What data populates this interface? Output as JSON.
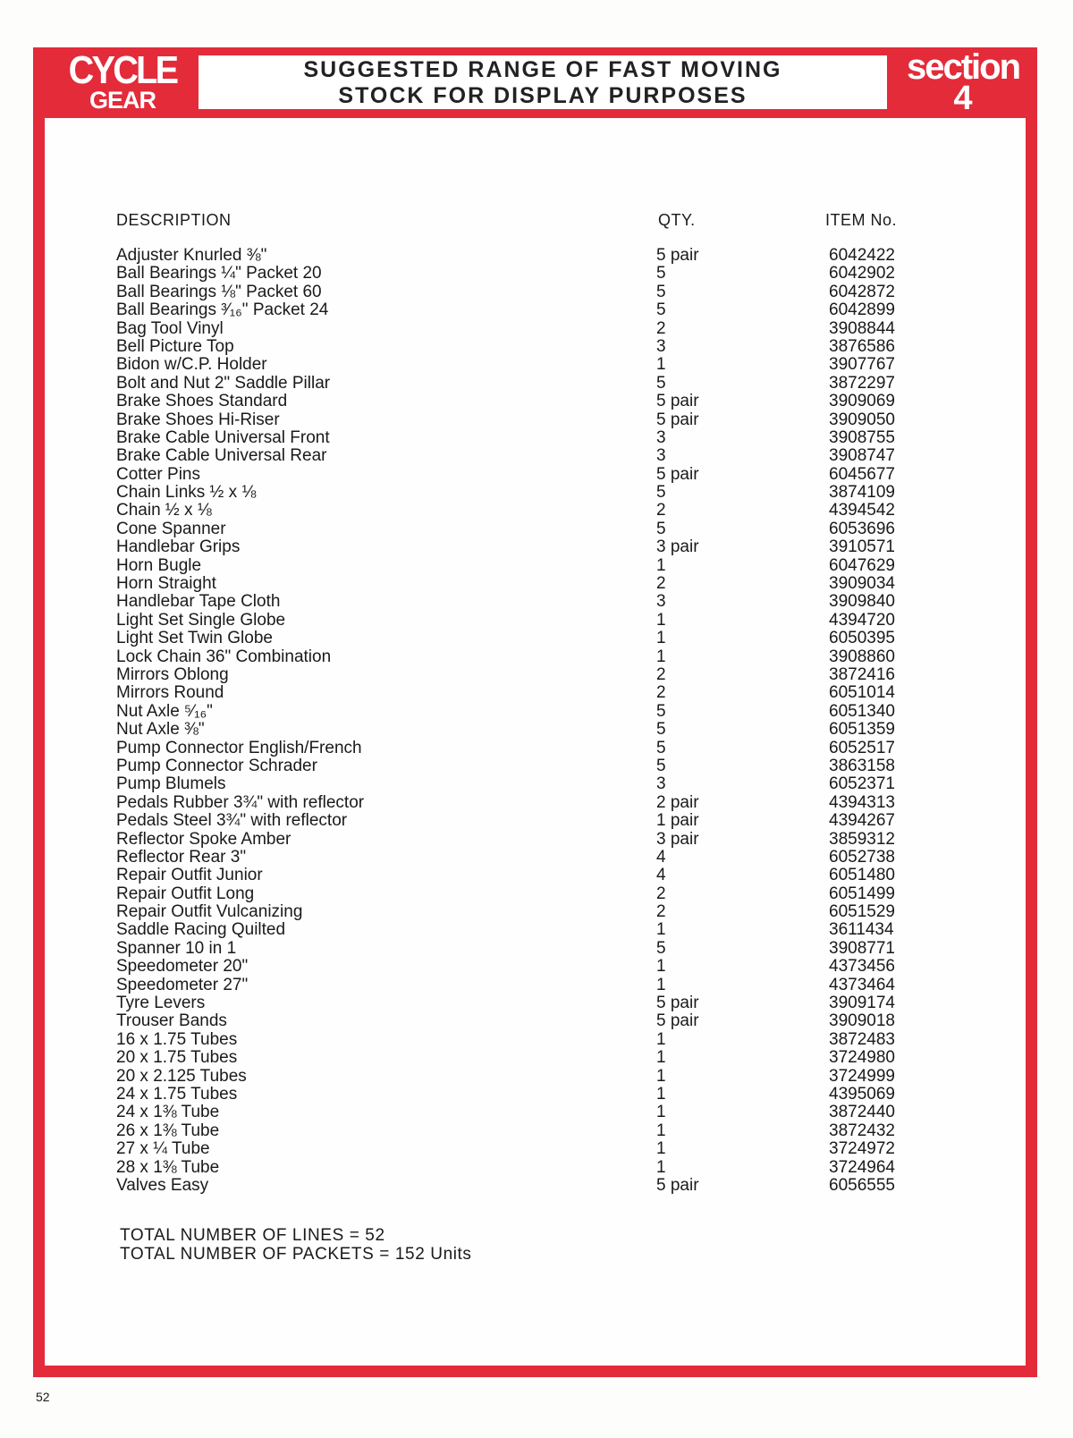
{
  "header": {
    "logo_line1": "CYCLE",
    "logo_line2": "GEAR",
    "title_line1": "SUGGESTED RANGE OF FAST MOVING",
    "title_line2": "STOCK FOR DISPLAY PURPOSES",
    "section_label": "section",
    "section_number": "4",
    "accent_color": "#e32b3a"
  },
  "table": {
    "columns": [
      "DESCRIPTION",
      "QTY.",
      "ITEM No."
    ],
    "rows": [
      [
        "Adjuster Knurled ⅜\"",
        "5 pair",
        "6042422"
      ],
      [
        "Ball Bearings ¼\" Packet 20",
        "5",
        "6042902"
      ],
      [
        "Ball Bearings ⅛\" Packet 60",
        "5",
        "6042872"
      ],
      [
        "Ball Bearings ³⁄₁₆\" Packet 24",
        "5",
        "6042899"
      ],
      [
        "Bag Tool Vinyl",
        "2",
        "3908844"
      ],
      [
        "Bell Picture Top",
        "3",
        "3876586"
      ],
      [
        "Bidon w/C.P. Holder",
        "1",
        "3907767"
      ],
      [
        "Bolt and Nut 2\" Saddle Pillar",
        "5",
        "3872297"
      ],
      [
        "Brake Shoes Standard",
        "5 pair",
        "3909069"
      ],
      [
        "Brake Shoes Hi-Riser",
        "5 pair",
        "3909050"
      ],
      [
        "Brake Cable Universal Front",
        "3",
        "3908755"
      ],
      [
        "Brake Cable Universal Rear",
        "3",
        "3908747"
      ],
      [
        "Cotter Pins",
        "5 pair",
        "6045677"
      ],
      [
        "Chain Links ½ x ⅛",
        "5",
        "3874109"
      ],
      [
        "Chain ½ x ⅛",
        "2",
        "4394542"
      ],
      [
        "Cone Spanner",
        "5",
        "6053696"
      ],
      [
        "Handlebar Grips",
        "3 pair",
        "3910571"
      ],
      [
        "Horn Bugle",
        "1",
        "6047629"
      ],
      [
        "Horn Straight",
        "2",
        "3909034"
      ],
      [
        "Handlebar Tape Cloth",
        "3",
        "3909840"
      ],
      [
        "Light Set Single Globe",
        "1",
        "4394720"
      ],
      [
        "Light Set Twin Globe",
        "1",
        "6050395"
      ],
      [
        "Lock Chain 36\" Combination",
        "1",
        "3908860"
      ],
      [
        "Mirrors Oblong",
        "2",
        "3872416"
      ],
      [
        "Mirrors Round",
        "2",
        "6051014"
      ],
      [
        "Nut Axle ⁵⁄₁₆\"",
        "5",
        "6051340"
      ],
      [
        "Nut Axle ⅜\"",
        "5",
        "6051359"
      ],
      [
        "Pump Connector English/French",
        "5",
        "6052517"
      ],
      [
        "Pump Connector Schrader",
        "5",
        "3863158"
      ],
      [
        "Pump Blumels",
        "3",
        "6052371"
      ],
      [
        "Pedals Rubber 3¾\" with reflector",
        "2 pair",
        "4394313"
      ],
      [
        "Pedals Steel 3¾\" with reflector",
        "1 pair",
        "4394267"
      ],
      [
        "Reflector Spoke Amber",
        "3 pair",
        "3859312"
      ],
      [
        "Reflector Rear 3\"",
        "4",
        "6052738"
      ],
      [
        "Repair Outfit Junior",
        "4",
        "6051480"
      ],
      [
        "Repair Outfit Long",
        "2",
        "6051499"
      ],
      [
        "Repair Outfit Vulcanizing",
        "2",
        "6051529"
      ],
      [
        "Saddle Racing Quilted",
        "1",
        "3611434"
      ],
      [
        "Spanner 10 in 1",
        "5",
        "3908771"
      ],
      [
        "Speedometer 20\"",
        "1",
        "4373456"
      ],
      [
        "Speedometer 27\"",
        "1",
        "4373464"
      ],
      [
        "Tyre Levers",
        "5 pair",
        "3909174"
      ],
      [
        "Trouser Bands",
        "5 pair",
        "3909018"
      ],
      [
        "16 x 1.75 Tubes",
        "1",
        "3872483"
      ],
      [
        "20 x 1.75 Tubes",
        "1",
        "3724980"
      ],
      [
        "20 x 2.125 Tubes",
        "1",
        "3724999"
      ],
      [
        "24 x 1.75 Tubes",
        "1",
        "4395069"
      ],
      [
        "24 x 1⅜ Tube",
        "1",
        "3872440"
      ],
      [
        "26 x 1⅜ Tube",
        "1",
        "3872432"
      ],
      [
        "27 x ¼ Tube",
        "1",
        "3724972"
      ],
      [
        "28 x 1⅜ Tube",
        "1",
        "3724964"
      ],
      [
        "Valves Easy",
        "5 pair",
        "6056555"
      ]
    ]
  },
  "totals": {
    "lines": "TOTAL NUMBER OF LINES = 52",
    "packets": "TOTAL NUMBER OF PACKETS = 152 Units"
  },
  "page_number": "52"
}
